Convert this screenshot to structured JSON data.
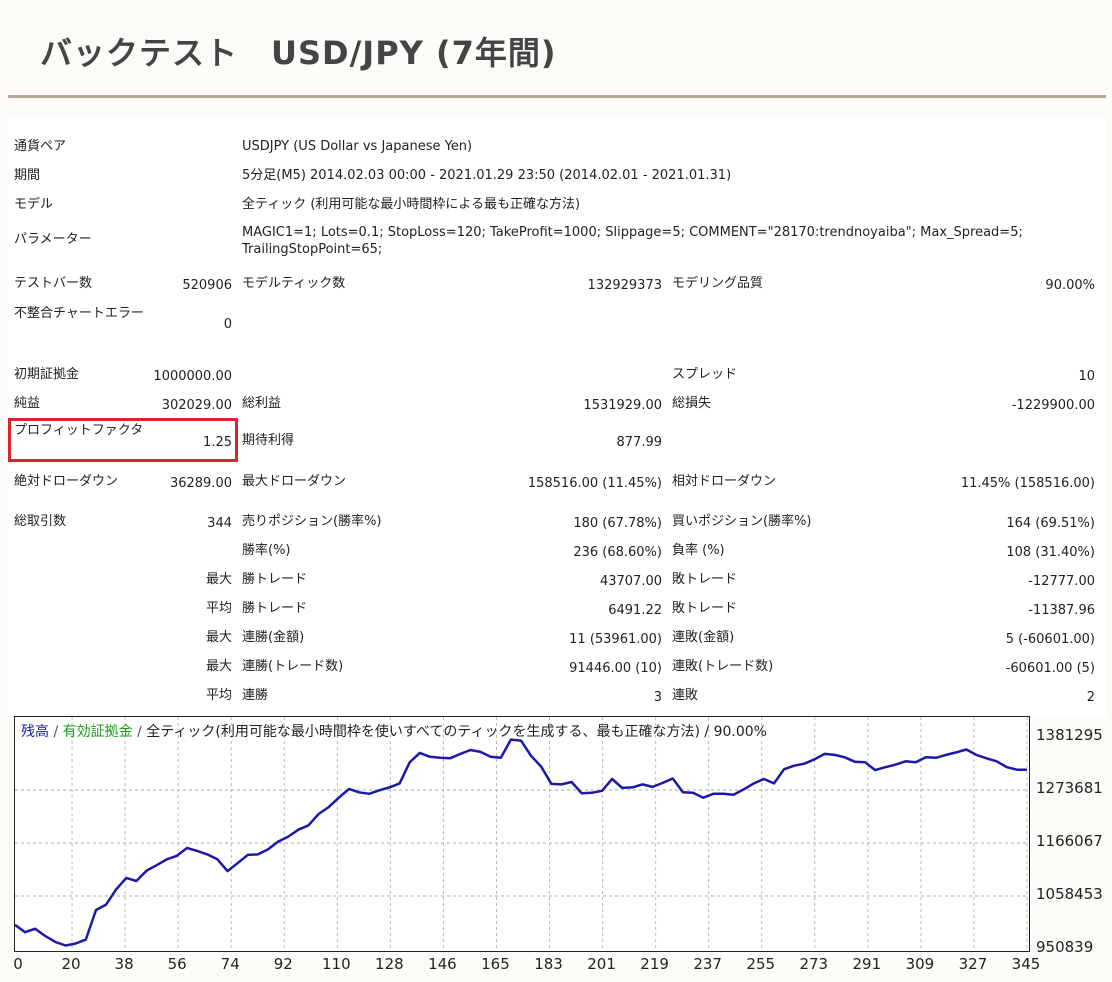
{
  "page": {
    "title": "バックテスト　USD/JPY (7年間)"
  },
  "info": [
    {
      "label": "通貨ペア",
      "value": "USDJPY (US Dollar vs Japanese Yen)"
    },
    {
      "label": "期間",
      "value": "5分足(M5) 2014.02.03 00:00 - 2021.01.29 23:50 (2014.02.01 - 2021.01.31)"
    },
    {
      "label": "モデル",
      "value": "全ティック (利用可能な最小時間枠による最も正確な方法)"
    },
    {
      "label": "パラメーター",
      "value": "MAGIC1=1; Lots=0.1; StopLoss=120; TakeProfit=1000; Slippage=5; COMMENT=\"28170:trendnoyaiba\"; Max_Spread=5; TrailingStopPoint=65;"
    }
  ],
  "stats": {
    "test_bars": {
      "label": "テストバー数",
      "value": "520906"
    },
    "model_ticks": {
      "label": "モデルティック数",
      "value": "132929373"
    },
    "model_quality": {
      "label": "モデリング品質",
      "value": "90.00%"
    },
    "mismatch": {
      "label": "不整合チャートエラー",
      "value": "0"
    },
    "initial_deposit": {
      "label": "初期証拠金",
      "value": "1000000.00"
    },
    "spread": {
      "label": "スプレッド",
      "value": "10"
    },
    "net_profit": {
      "label": "純益",
      "value": "302029.00"
    },
    "gross_profit": {
      "label": "総利益",
      "value": "1531929.00"
    },
    "gross_loss": {
      "label": "総損失",
      "value": "-1229900.00"
    },
    "profit_factor": {
      "label": "プロフィットファクタ",
      "value": "1.25"
    },
    "expected_payoff": {
      "label": "期待利得",
      "value": "877.99"
    },
    "abs_dd": {
      "label": "絶対ドローダウン",
      "value": "36289.00"
    },
    "max_dd": {
      "label": "最大ドローダウン",
      "value": "158516.00 (11.45%)"
    },
    "rel_dd": {
      "label": "相対ドローダウン",
      "value": "11.45% (158516.00)"
    },
    "total_trades": {
      "label": "総取引数",
      "value": "344"
    },
    "short_pos": {
      "label": "売りポジション(勝率%)",
      "value": "180 (67.78%)"
    },
    "long_pos": {
      "label": "買いポジション(勝率%)",
      "value": "164 (69.51%)"
    },
    "win_rate": {
      "label": "勝率(%)",
      "value": "236 (68.60%)"
    },
    "loss_rate": {
      "label": "負率 (%)",
      "value": "108 (31.40%)"
    },
    "rows": [
      {
        "prefix": "最大",
        "label1": "勝トレード",
        "value1": "43707.00",
        "label2": "敗トレード",
        "value2": "-12777.00"
      },
      {
        "prefix": "平均",
        "label1": "勝トレード",
        "value1": "6491.22",
        "label2": "敗トレード",
        "value2": "-11387.96"
      },
      {
        "prefix": "最大",
        "label1": "連勝(金額)",
        "value1": "11 (53961.00)",
        "label2": "連敗(金額)",
        "value2": "5 (-60601.00)"
      },
      {
        "prefix": "最大",
        "label1": "連勝(トレード数)",
        "value1": "91446.00 (10)",
        "label2": "連敗(トレード数)",
        "value2": "-60601.00 (5)"
      },
      {
        "prefix": "平均",
        "label1": "連勝",
        "value1": "3",
        "label2": "連敗",
        "value2": "2"
      }
    ]
  },
  "chart_legend": {
    "balance": "残高",
    "sep1": " / ",
    "equity": "有効証拠金",
    "sep2": " / ",
    "rest": "全ティック(利用可能な最小時間枠を使いすべてのティックを生成する、最も正確な方法) / 90.00%"
  },
  "colors": {
    "balance": "#1a1aa6",
    "equity": "#1e9e1e",
    "highlight": "#d9262c",
    "rule": "#b2a694"
  },
  "chart_data": {
    "type": "line",
    "series": [
      {
        "name": "残高",
        "values": [
          1000000,
          985000,
          992000,
          977000,
          965000,
          958000,
          962000,
          970000,
          1030000,
          1041000,
          1072000,
          1095000,
          1089000,
          1110000,
          1121000,
          1133000,
          1140000,
          1156000,
          1150000,
          1143000,
          1133000,
          1109000,
          1125000,
          1142000,
          1143000,
          1153000,
          1169000,
          1179000,
          1193000,
          1202000,
          1225000,
          1239000,
          1258000,
          1276000,
          1269000,
          1266000,
          1273000,
          1279000,
          1287000,
          1330000,
          1349000,
          1341000,
          1339000,
          1338000,
          1347000,
          1355000,
          1351000,
          1341000,
          1339000,
          1376000,
          1374000,
          1343000,
          1321000,
          1286000,
          1285000,
          1290000,
          1267000,
          1268000,
          1272000,
          1296000,
          1278000,
          1279000,
          1285000,
          1280000,
          1288000,
          1297000,
          1269000,
          1268000,
          1258000,
          1266000,
          1266000,
          1264000,
          1275000,
          1287000,
          1296000,
          1287000,
          1316000,
          1323000,
          1327000,
          1336000,
          1347000,
          1345000,
          1340000,
          1331000,
          1330000,
          1314000,
          1320000,
          1325000,
          1332000,
          1330000,
          1340000,
          1339000,
          1345000,
          1350000,
          1356000,
          1345000,
          1338000,
          1332000,
          1320000,
          1315000,
          1315000
        ]
      }
    ],
    "x_ticks": [
      "0",
      "20",
      "38",
      "56",
      "74",
      "92",
      "110",
      "128",
      "146",
      "165",
      "183",
      "201",
      "219",
      "237",
      "255",
      "273",
      "291",
      "309",
      "327",
      "345"
    ],
    "y_ticks": [
      "1381295",
      "1273681",
      "1166067",
      "1058453",
      "950839"
    ],
    "x_range": [
      0,
      350
    ],
    "y_range": [
      950839,
      1381295
    ],
    "grid": true
  }
}
